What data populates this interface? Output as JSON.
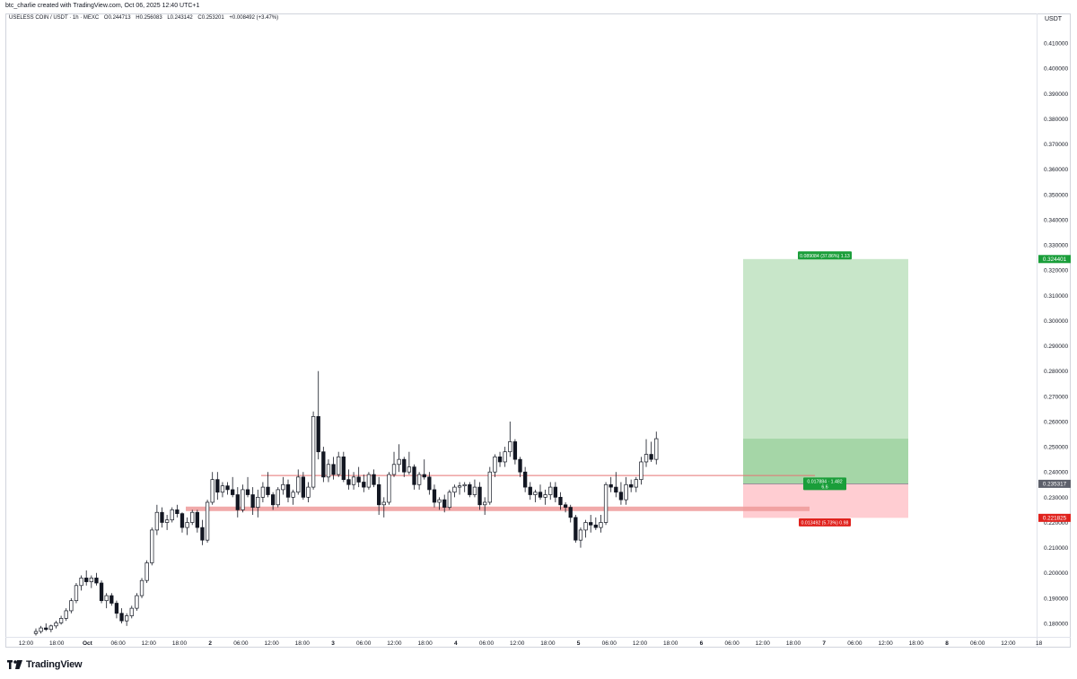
{
  "header": {
    "caption": "btc_charlie created with TradingView.com, Oct 06, 2025 12:40 UTC+1",
    "symbol": "USELESS COIN / USDT · 1h · MEXC",
    "open": "O0.244713",
    "high": "H0.256083",
    "low": "L0.243142",
    "close": "C0.253201",
    "change": "+0.008492 (+3.47%)",
    "currency": "USDT"
  },
  "price_axis": {
    "ticks": [
      "0.410000",
      "0.400000",
      "0.390000",
      "0.380000",
      "0.370000",
      "0.360000",
      "0.350000",
      "0.340000",
      "0.330000",
      "0.320000",
      "0.310000",
      "0.300000",
      "0.290000",
      "0.280000",
      "0.270000",
      "0.260000",
      "0.250000",
      "0.240000",
      "0.230000",
      "0.220000",
      "0.210000",
      "0.200000",
      "0.190000",
      "0.180000"
    ],
    "tick_values": [
      0.41,
      0.4,
      0.39,
      0.38,
      0.37,
      0.36,
      0.35,
      0.34,
      0.33,
      0.32,
      0.31,
      0.3,
      0.29,
      0.28,
      0.27,
      0.26,
      0.25,
      0.24,
      0.23,
      0.22,
      0.21,
      0.2,
      0.19,
      0.18
    ],
    "badges": [
      {
        "label": "0.324401",
        "value": 0.324401,
        "color": "#1a9e3a"
      },
      {
        "label": "0.235317",
        "value": 0.235317,
        "color": "#5d606b"
      },
      {
        "label": "0.221825",
        "value": 0.221825,
        "color": "#e0221d"
      }
    ]
  },
  "time_axis": {
    "labels": [
      "12:00",
      "18:00",
      "Oct",
      "06:00",
      "12:00",
      "18:00",
      "2",
      "06:00",
      "12:00",
      "18:00",
      "3",
      "06:00",
      "12:00",
      "18:00",
      "4",
      "06:00",
      "12:00",
      "18:00",
      "5",
      "06:00",
      "12:00",
      "18:00",
      "6",
      "06:00",
      "12:00",
      "18:00",
      "7",
      "06:00",
      "12:00",
      "18:00",
      "8",
      "06:00",
      "12:00",
      "18"
    ],
    "bold_labels": [
      "Oct",
      "2",
      "3",
      "4",
      "5",
      "6",
      "7",
      "8"
    ]
  },
  "position_tool": {
    "entry": 0.235317,
    "target": 0.324401,
    "stop": 0.221825,
    "target_label": "0.089084 (37.86%) 1.13",
    "open_label_1": "0.017884 · 1.482",
    "open_label_2": "6.6",
    "stop_label": "0.013492 (5.73%) 0.98",
    "profit_color": "#c8e6c9",
    "profit_color_strong": "#a5d6a7",
    "loss_color": "#ffcdd2"
  },
  "levels": [
    {
      "value": 0.2386,
      "color": "#e57373",
      "style": "thin"
    },
    {
      "value": 0.2254,
      "color": "#ef9a9a",
      "style": "thick"
    }
  ],
  "chart_data": {
    "type": "candlestick",
    "symbol": "USELESS COIN / USDT",
    "interval": "1h",
    "exchange": "MEXC",
    "ylim": [
      0.176,
      0.418
    ],
    "ohlc": [
      [
        0.176,
        0.178,
        0.1752,
        0.1768
      ],
      [
        0.1768,
        0.179,
        0.176,
        0.1782
      ],
      [
        0.1782,
        0.18,
        0.177,
        0.1776
      ],
      [
        0.1776,
        0.1795,
        0.1765,
        0.179
      ],
      [
        0.179,
        0.181,
        0.178,
        0.1802
      ],
      [
        0.1802,
        0.183,
        0.1795,
        0.182
      ],
      [
        0.182,
        0.186,
        0.181,
        0.185
      ],
      [
        0.185,
        0.19,
        0.184,
        0.189
      ],
      [
        0.189,
        0.196,
        0.188,
        0.195
      ],
      [
        0.195,
        0.199,
        0.193,
        0.198
      ],
      [
        0.198,
        0.201,
        0.195,
        0.1965
      ],
      [
        0.1965,
        0.199,
        0.194,
        0.198
      ],
      [
        0.198,
        0.2,
        0.195,
        0.196
      ],
      [
        0.196,
        0.197,
        0.188,
        0.189
      ],
      [
        0.189,
        0.192,
        0.186,
        0.191
      ],
      [
        0.191,
        0.192,
        0.187,
        0.188
      ],
      [
        0.188,
        0.189,
        0.182,
        0.184
      ],
      [
        0.184,
        0.186,
        0.18,
        0.181
      ],
      [
        0.181,
        0.184,
        0.179,
        0.183
      ],
      [
        0.183,
        0.187,
        0.182,
        0.186
      ],
      [
        0.186,
        0.192,
        0.185,
        0.191
      ],
      [
        0.191,
        0.198,
        0.19,
        0.197
      ],
      [
        0.197,
        0.205,
        0.196,
        0.204
      ],
      [
        0.204,
        0.218,
        0.203,
        0.217
      ],
      [
        0.217,
        0.227,
        0.215,
        0.224
      ],
      [
        0.224,
        0.226,
        0.218,
        0.22
      ],
      [
        0.22,
        0.223,
        0.217,
        0.221
      ],
      [
        0.221,
        0.226,
        0.22,
        0.225
      ],
      [
        0.225,
        0.227,
        0.222,
        0.2235
      ],
      [
        0.2235,
        0.224,
        0.216,
        0.218
      ],
      [
        0.218,
        0.222,
        0.215,
        0.22
      ],
      [
        0.22,
        0.225,
        0.219,
        0.224
      ],
      [
        0.224,
        0.225,
        0.216,
        0.218
      ],
      [
        0.218,
        0.221,
        0.211,
        0.213
      ],
      [
        0.213,
        0.229,
        0.212,
        0.228
      ],
      [
        0.228,
        0.24,
        0.227,
        0.237
      ],
      [
        0.237,
        0.24,
        0.229,
        0.232
      ],
      [
        0.232,
        0.236,
        0.23,
        0.2345
      ],
      [
        0.2345,
        0.236,
        0.231,
        0.233
      ],
      [
        0.233,
        0.238,
        0.23,
        0.231
      ],
      [
        0.231,
        0.234,
        0.222,
        0.225
      ],
      [
        0.225,
        0.235,
        0.224,
        0.233
      ],
      [
        0.233,
        0.238,
        0.23,
        0.231
      ],
      [
        0.231,
        0.234,
        0.223,
        0.226
      ],
      [
        0.226,
        0.233,
        0.222,
        0.23
      ],
      [
        0.23,
        0.236,
        0.228,
        0.234
      ],
      [
        0.234,
        0.24,
        0.23,
        0.231
      ],
      [
        0.231,
        0.232,
        0.225,
        0.227
      ],
      [
        0.227,
        0.234,
        0.226,
        0.233
      ],
      [
        0.233,
        0.238,
        0.231,
        0.235
      ],
      [
        0.235,
        0.237,
        0.228,
        0.23
      ],
      [
        0.23,
        0.233,
        0.227,
        0.232
      ],
      [
        0.232,
        0.241,
        0.231,
        0.238
      ],
      [
        0.238,
        0.24,
        0.229,
        0.23
      ],
      [
        0.23,
        0.236,
        0.228,
        0.234
      ],
      [
        0.234,
        0.264,
        0.233,
        0.262
      ],
      [
        0.262,
        0.28,
        0.245,
        0.248
      ],
      [
        0.248,
        0.25,
        0.236,
        0.238
      ],
      [
        0.238,
        0.245,
        0.236,
        0.243
      ],
      [
        0.243,
        0.246,
        0.237,
        0.239
      ],
      [
        0.239,
        0.248,
        0.238,
        0.246
      ],
      [
        0.246,
        0.248,
        0.236,
        0.237
      ],
      [
        0.237,
        0.241,
        0.233,
        0.235
      ],
      [
        0.235,
        0.24,
        0.233,
        0.238
      ],
      [
        0.238,
        0.242,
        0.234,
        0.236
      ],
      [
        0.236,
        0.239,
        0.232,
        0.234
      ],
      [
        0.234,
        0.24,
        0.233,
        0.239
      ],
      [
        0.239,
        0.241,
        0.234,
        0.235
      ],
      [
        0.235,
        0.238,
        0.223,
        0.227
      ],
      [
        0.227,
        0.23,
        0.222,
        0.228
      ],
      [
        0.228,
        0.24,
        0.227,
        0.239
      ],
      [
        0.239,
        0.248,
        0.238,
        0.243
      ],
      [
        0.243,
        0.251,
        0.24,
        0.245
      ],
      [
        0.245,
        0.246,
        0.238,
        0.24
      ],
      [
        0.24,
        0.248,
        0.239,
        0.242
      ],
      [
        0.242,
        0.243,
        0.233,
        0.235
      ],
      [
        0.235,
        0.24,
        0.233,
        0.239
      ],
      [
        0.239,
        0.245,
        0.237,
        0.238
      ],
      [
        0.238,
        0.24,
        0.231,
        0.233
      ],
      [
        0.233,
        0.235,
        0.226,
        0.228
      ],
      [
        0.228,
        0.23,
        0.225,
        0.229
      ],
      [
        0.229,
        0.231,
        0.224,
        0.226
      ],
      [
        0.226,
        0.233,
        0.225,
        0.232
      ],
      [
        0.232,
        0.235,
        0.23,
        0.234
      ],
      [
        0.234,
        0.236,
        0.231,
        0.2345
      ],
      [
        0.2345,
        0.236,
        0.232,
        0.235
      ],
      [
        0.235,
        0.236,
        0.23,
        0.231
      ],
      [
        0.231,
        0.237,
        0.23,
        0.234
      ],
      [
        0.234,
        0.236,
        0.225,
        0.227
      ],
      [
        0.227,
        0.23,
        0.223,
        0.228
      ],
      [
        0.228,
        0.242,
        0.227,
        0.24
      ],
      [
        0.24,
        0.247,
        0.238,
        0.246
      ],
      [
        0.246,
        0.248,
        0.242,
        0.244
      ],
      [
        0.244,
        0.25,
        0.242,
        0.248
      ],
      [
        0.248,
        0.26,
        0.246,
        0.252
      ],
      [
        0.252,
        0.253,
        0.243,
        0.245
      ],
      [
        0.245,
        0.246,
        0.238,
        0.24
      ],
      [
        0.24,
        0.242,
        0.232,
        0.234
      ],
      [
        0.234,
        0.236,
        0.229,
        0.231
      ],
      [
        0.231,
        0.233,
        0.228,
        0.232
      ],
      [
        0.232,
        0.235,
        0.229,
        0.23
      ],
      [
        0.23,
        0.233,
        0.227,
        0.231
      ],
      [
        0.231,
        0.236,
        0.229,
        0.234
      ],
      [
        0.234,
        0.236,
        0.228,
        0.23
      ],
      [
        0.23,
        0.232,
        0.225,
        0.227
      ],
      [
        0.227,
        0.228,
        0.224,
        0.226
      ],
      [
        0.226,
        0.227,
        0.22,
        0.222
      ],
      [
        0.222,
        0.223,
        0.212,
        0.213
      ],
      [
        0.213,
        0.218,
        0.21,
        0.217
      ],
      [
        0.217,
        0.221,
        0.214,
        0.22
      ],
      [
        0.22,
        0.223,
        0.216,
        0.219
      ],
      [
        0.219,
        0.222,
        0.217,
        0.218
      ],
      [
        0.218,
        0.223,
        0.216,
        0.22
      ],
      [
        0.22,
        0.236,
        0.219,
        0.235
      ],
      [
        0.235,
        0.238,
        0.232,
        0.234
      ],
      [
        0.234,
        0.24,
        0.23,
        0.232
      ],
      [
        0.232,
        0.236,
        0.227,
        0.229
      ],
      [
        0.229,
        0.238,
        0.227,
        0.235
      ],
      [
        0.235,
        0.237,
        0.232,
        0.234
      ],
      [
        0.234,
        0.238,
        0.232,
        0.237
      ],
      [
        0.237,
        0.246,
        0.235,
        0.244
      ],
      [
        0.244,
        0.253,
        0.242,
        0.247
      ],
      [
        0.247,
        0.252,
        0.244,
        0.245
      ],
      [
        0.245,
        0.256,
        0.243,
        0.2532
      ]
    ]
  }
}
